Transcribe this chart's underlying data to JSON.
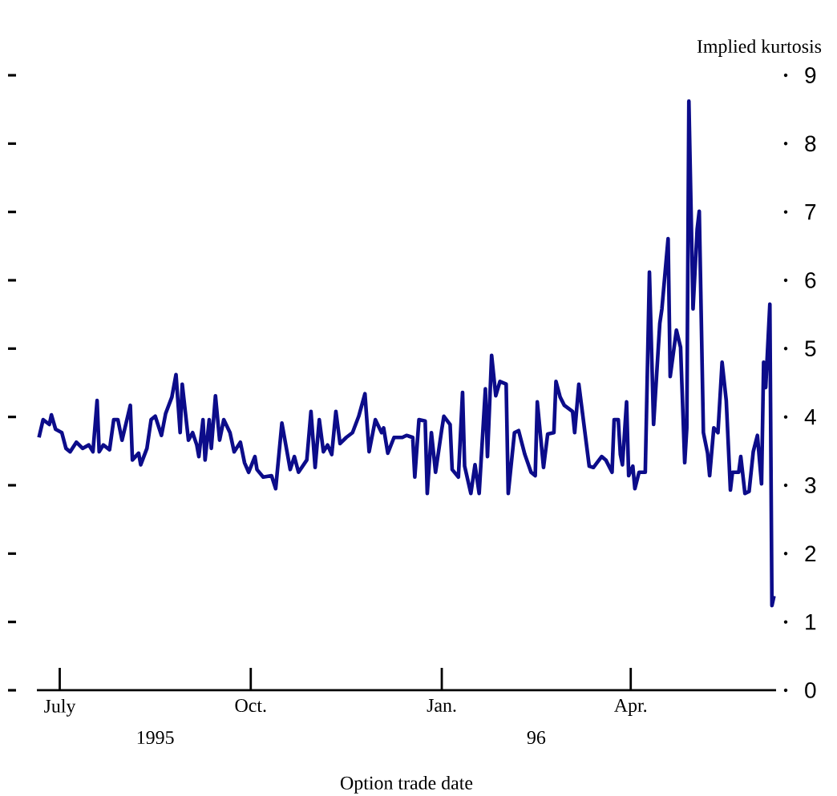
{
  "chart_data": {
    "type": "line",
    "xlabel": "Option trade date",
    "ylabel": "Implied kurtosis",
    "annotations": [
      "1995",
      "96"
    ],
    "xlim": [
      "1995-06-20",
      "1996-06-10"
    ],
    "xticks": [
      {
        "value": "1995-07-01",
        "label": "July"
      },
      {
        "value": "1995-10-01",
        "label": "Oct."
      },
      {
        "value": "1996-01-01",
        "label": "Jan."
      },
      {
        "value": "1996-04-01",
        "label": "Apr."
      }
    ],
    "ylim": [
      0,
      9
    ],
    "yticks": [
      0,
      1,
      2,
      3,
      4,
      5,
      6,
      7,
      8,
      9
    ],
    "grid": false,
    "legend": false,
    "marker": "none",
    "line_style": "solid",
    "series": [
      {
        "color": "#0c0c8a",
        "x": [
          "1995-06-21",
          "1995-06-23",
          "1995-06-26",
          "1995-06-27",
          "1995-06-29",
          "1995-07-02",
          "1995-07-04",
          "1995-07-06",
          "1995-07-09",
          "1995-07-12",
          "1995-07-15",
          "1995-07-17",
          "1995-07-19",
          "1995-07-20",
          "1995-07-22",
          "1995-07-25",
          "1995-07-27",
          "1995-07-29",
          "1995-07-31",
          "1995-08-04",
          "1995-08-05",
          "1995-08-08",
          "1995-08-09",
          "1995-08-12",
          "1995-08-14",
          "1995-08-16",
          "1995-08-19",
          "1995-08-21",
          "1995-08-24",
          "1995-08-26",
          "1995-08-28",
          "1995-08-29",
          "1995-09-01",
          "1995-09-03",
          "1995-09-05",
          "1995-09-06",
          "1995-09-08",
          "1995-09-09",
          "1995-09-11",
          "1995-09-12",
          "1995-09-14",
          "1995-09-16",
          "1995-09-18",
          "1995-09-21",
          "1995-09-23",
          "1995-09-26",
          "1995-09-28",
          "1995-09-30",
          "1995-10-03",
          "1995-10-04",
          "1995-10-07",
          "1995-10-11",
          "1995-10-13",
          "1995-10-16",
          "1995-10-20",
          "1995-10-22",
          "1995-10-24",
          "1995-10-28",
          "1995-10-30",
          "1995-11-01",
          "1995-11-03",
          "1995-11-05",
          "1995-11-07",
          "1995-11-09",
          "1995-11-11",
          "1995-11-13",
          "1995-11-16",
          "1995-11-19",
          "1995-11-22",
          "1995-11-25",
          "1995-11-27",
          "1995-11-30",
          "1995-12-03",
          "1995-12-04",
          "1995-12-06",
          "1995-12-09",
          "1995-12-13",
          "1995-12-15",
          "1995-12-18",
          "1995-12-19",
          "1995-12-21",
          "1995-12-24",
          "1995-12-25",
          "1995-12-27",
          "1995-12-29",
          "1996-01-01",
          "1996-01-02",
          "1996-01-05",
          "1996-01-06",
          "1996-01-09",
          "1996-01-11",
          "1996-01-12",
          "1996-01-15",
          "1996-01-17",
          "1996-01-19",
          "1996-01-22",
          "1996-01-23",
          "1996-01-25",
          "1996-01-27",
          "1996-01-29",
          "1996-02-01",
          "1996-02-02",
          "1996-02-05",
          "1996-02-07",
          "1996-02-10",
          "1996-02-13",
          "1996-02-15",
          "1996-02-16",
          "1996-02-19",
          "1996-02-21",
          "1996-02-24",
          "1996-02-25",
          "1996-02-27",
          "1996-02-29",
          "1996-03-04",
          "1996-03-05",
          "1996-03-07",
          "1996-03-12",
          "1996-03-14",
          "1996-03-18",
          "1996-03-20",
          "1996-03-23",
          "1996-03-24",
          "1996-03-26",
          "1996-03-27",
          "1996-03-28",
          "1996-03-30",
          "1996-03-31",
          "1996-04-02",
          "1996-04-03",
          "1996-04-05",
          "1996-04-08",
          "1996-04-10",
          "1996-04-12",
          "1996-04-15",
          "1996-04-16",
          "1996-04-19",
          "1996-04-20",
          "1996-04-23",
          "1996-04-25",
          "1996-04-27",
          "1996-04-28",
          "1996-04-29",
          "1996-05-01",
          "1996-05-03",
          "1996-05-04",
          "1996-05-06",
          "1996-05-08",
          "1996-05-09",
          "1996-05-11",
          "1996-05-13",
          "1996-05-15",
          "1996-05-17",
          "1996-05-19",
          "1996-05-20",
          "1996-05-23",
          "1996-05-24",
          "1996-05-26",
          "1996-05-28",
          "1996-05-30",
          "1996-06-01",
          "1996-06-03",
          "1996-06-04",
          "1996-06-05",
          "1996-06-07",
          "1996-06-08",
          "1996-06-09"
        ],
        "values": [
          3.7,
          3.96,
          3.89,
          4.03,
          3.82,
          3.77,
          3.54,
          3.49,
          3.63,
          3.54,
          3.59,
          3.49,
          4.24,
          3.49,
          3.59,
          3.52,
          3.96,
          3.96,
          3.66,
          4.17,
          3.37,
          3.47,
          3.3,
          3.54,
          3.96,
          4.01,
          3.73,
          4.05,
          4.29,
          4.62,
          3.77,
          4.48,
          3.66,
          3.77,
          3.59,
          3.42,
          3.96,
          3.37,
          3.96,
          3.54,
          4.31,
          3.66,
          3.96,
          3.77,
          3.49,
          3.63,
          3.33,
          3.19,
          3.42,
          3.23,
          3.12,
          3.14,
          2.95,
          3.91,
          3.23,
          3.42,
          3.19,
          3.37,
          4.08,
          3.26,
          3.96,
          3.49,
          3.59,
          3.45,
          4.08,
          3.61,
          3.7,
          3.77,
          4.01,
          4.34,
          3.49,
          3.96,
          3.77,
          3.84,
          3.47,
          3.7,
          3.7,
          3.73,
          3.7,
          3.12,
          3.96,
          3.94,
          2.88,
          3.77,
          3.19,
          3.82,
          4.01,
          3.89,
          3.23,
          3.12,
          4.36,
          3.28,
          2.88,
          3.3,
          2.88,
          4.41,
          3.42,
          4.9,
          4.31,
          4.52,
          4.48,
          2.88,
          3.77,
          3.8,
          3.45,
          3.19,
          3.14,
          4.22,
          3.26,
          3.75,
          3.77,
          4.52,
          4.29,
          4.17,
          4.08,
          3.77,
          4.48,
          3.28,
          3.26,
          3.42,
          3.37,
          3.19,
          3.96,
          3.96,
          3.45,
          3.3,
          4.22,
          3.14,
          3.28,
          2.95,
          3.19,
          3.19,
          6.12,
          3.89,
          5.37,
          5.58,
          6.61,
          4.59,
          5.27,
          5.02,
          3.33,
          3.84,
          8.62,
          5.58,
          6.75,
          7.01,
          3.77,
          3.47,
          3.14,
          3.84,
          3.77,
          4.8,
          4.24,
          2.93,
          3.19,
          3.19,
          3.42,
          2.88,
          2.91,
          3.49,
          3.73,
          3.02,
          4.8,
          4.43,
          5.65,
          1.24,
          1.38
        ]
      }
    ]
  }
}
